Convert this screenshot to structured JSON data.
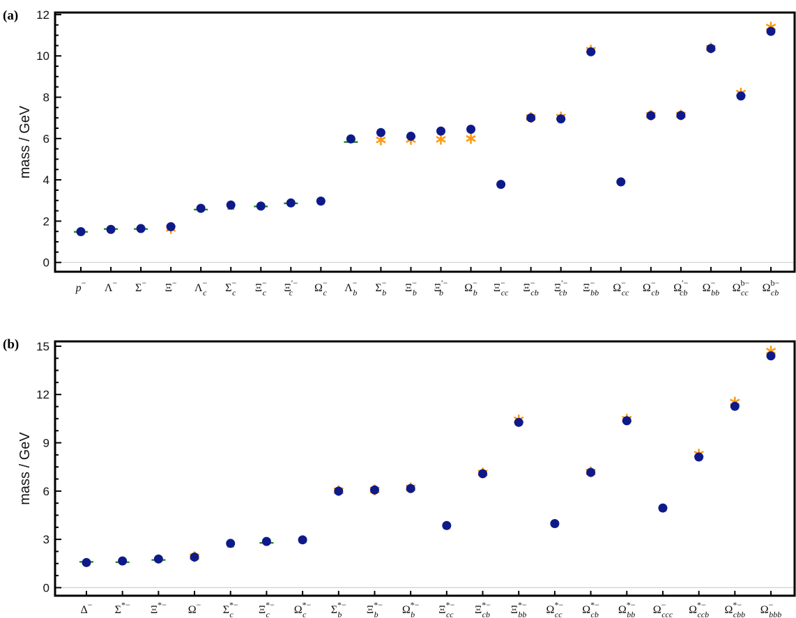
{
  "colors": {
    "circle": "#0f1a8a",
    "triangle": "#a88a3c",
    "star": "#ff9a10",
    "line": "#1e8a1e",
    "zero_line": "#c8c8c8",
    "frame": "#000000"
  },
  "chart_data": [
    {
      "type": "scatter",
      "panel_label": "(a)",
      "ylabel": "mass / GeV",
      "ylim": [
        -0.45,
        12.1
      ],
      "yticks": [
        0,
        2,
        4,
        6,
        8,
        10,
        12
      ],
      "grid": false,
      "categories": [
        {
          "base": "p",
          "sub": "",
          "sup": "−",
          "italic": true
        },
        {
          "base": "Λ",
          "sub": "",
          "sup": "−"
        },
        {
          "base": "Σ",
          "sub": "",
          "sup": "−"
        },
        {
          "base": "Ξ",
          "sub": "",
          "sup": "−"
        },
        {
          "base": "Λ",
          "sub": "c",
          "sup": "−"
        },
        {
          "base": "Σ",
          "sub": "c",
          "sup": "−"
        },
        {
          "base": "Ξ",
          "sub": "c",
          "sup": "−"
        },
        {
          "base": "Ξ",
          "sub": "c",
          "sup": "′−"
        },
        {
          "base": "Ω",
          "sub": "c",
          "sup": "−"
        },
        {
          "base": "Λ",
          "sub": "b",
          "sup": "−"
        },
        {
          "base": "Σ",
          "sub": "b",
          "sup": "−"
        },
        {
          "base": "Ξ",
          "sub": "b",
          "sup": "−"
        },
        {
          "base": "Ξ",
          "sub": "b",
          "sup": "′−"
        },
        {
          "base": "Ω",
          "sub": "b",
          "sup": "−"
        },
        {
          "base": "Ξ",
          "sub": "cc",
          "sup": "−"
        },
        {
          "base": "Ξ",
          "sub": "cb",
          "sup": "−"
        },
        {
          "base": "Ξ",
          "sub": "cb",
          "sup": "′−"
        },
        {
          "base": "Ξ",
          "sub": "bb",
          "sup": "−"
        },
        {
          "base": "Ω",
          "sub": "cc",
          "sup": "−"
        },
        {
          "base": "Ω",
          "sub": "cb",
          "sup": "−"
        },
        {
          "base": "Ω",
          "sub": "cb",
          "sup": "′−"
        },
        {
          "base": "Ω",
          "sub": "bb",
          "sup": "−"
        },
        {
          "base": "Ω",
          "sub": "cc",
          "sup": "b−"
        },
        {
          "base": "Ω",
          "sub": "cb",
          "sup": "b−"
        }
      ],
      "series": [
        {
          "marker": "line",
          "values": [
            1.48,
            1.62,
            1.62,
            null,
            2.56,
            null,
            2.71,
            2.86,
            null,
            5.83,
            null,
            null,
            null,
            null,
            null,
            null,
            null,
            null,
            null,
            null,
            null,
            null,
            null,
            null
          ]
        },
        {
          "marker": "triangle",
          "values": [
            null,
            null,
            null,
            null,
            null,
            2.72,
            null,
            null,
            2.99,
            null,
            null,
            null,
            null,
            null,
            3.8,
            null,
            null,
            null,
            3.93,
            null,
            null,
            null,
            null,
            null
          ]
        },
        {
          "marker": "star",
          "values": [
            null,
            null,
            null,
            1.64,
            null,
            null,
            null,
            null,
            null,
            null,
            5.93,
            5.95,
            5.96,
            6.0,
            null,
            7.02,
            7.04,
            10.28,
            null,
            7.13,
            7.14,
            10.38,
            8.2,
            11.4
          ]
        },
        {
          "marker": "circle",
          "values": [
            1.49,
            1.6,
            1.64,
            1.73,
            2.62,
            2.78,
            2.73,
            2.88,
            2.97,
            5.98,
            6.29,
            6.11,
            6.36,
            6.45,
            3.78,
            7.0,
            6.95,
            10.2,
            3.9,
            7.11,
            7.12,
            10.36,
            8.06,
            11.19
          ]
        }
      ]
    },
    {
      "type": "scatter",
      "panel_label": "(b)",
      "ylabel": "mass / GeV",
      "ylim": [
        -0.5,
        15.3
      ],
      "yticks": [
        0,
        3,
        6,
        9,
        12,
        15
      ],
      "grid": false,
      "categories": [
        {
          "base": "Δ",
          "sub": "",
          "sup": "−"
        },
        {
          "base": "Σ",
          "sub": "",
          "sup": "*−"
        },
        {
          "base": "Ξ",
          "sub": "",
          "sup": "*−"
        },
        {
          "base": "Ω",
          "sub": "",
          "sup": "−"
        },
        {
          "base": "Σ",
          "sub": "c",
          "sup": "*−"
        },
        {
          "base": "Ξ",
          "sub": "c",
          "sup": "*−"
        },
        {
          "base": "Ω",
          "sub": "c",
          "sup": "*−"
        },
        {
          "base": "Σ",
          "sub": "b",
          "sup": "*−"
        },
        {
          "base": "Ξ",
          "sub": "b",
          "sup": "*−"
        },
        {
          "base": "Ω",
          "sub": "b",
          "sup": "*−"
        },
        {
          "base": "Ξ",
          "sub": "cc",
          "sup": "*−"
        },
        {
          "base": "Ξ",
          "sub": "cb",
          "sup": "*−"
        },
        {
          "base": "Ξ",
          "sub": "bb",
          "sup": "*−"
        },
        {
          "base": "Ω",
          "sub": "cc",
          "sup": "*−"
        },
        {
          "base": "Ω",
          "sub": "cb",
          "sup": "*−"
        },
        {
          "base": "Ω",
          "sub": "bb",
          "sup": "*−"
        },
        {
          "base": "Ω",
          "sub": "ccc",
          "sup": "−"
        },
        {
          "base": "Ω",
          "sub": "ccb",
          "sup": "*−"
        },
        {
          "base": "Ω",
          "sub": "cbb",
          "sup": "*−"
        },
        {
          "base": "Ω",
          "sub": "bbb",
          "sup": "−"
        }
      ],
      "series": [
        {
          "marker": "line",
          "values": [
            1.6,
            1.58,
            1.72,
            null,
            null,
            2.78,
            null,
            null,
            null,
            null,
            null,
            null,
            null,
            null,
            null,
            null,
            null,
            null,
            null,
            null
          ]
        },
        {
          "marker": "triangle",
          "values": [
            null,
            null,
            null,
            null,
            2.72,
            null,
            2.98,
            null,
            null,
            null,
            3.85,
            null,
            null,
            3.98,
            null,
            null,
            4.95,
            null,
            null,
            null
          ]
        },
        {
          "marker": "star",
          "values": [
            null,
            null,
            null,
            1.92,
            null,
            null,
            null,
            6.02,
            6.07,
            6.2,
            null,
            7.13,
            10.43,
            null,
            7.19,
            10.47,
            null,
            8.3,
            11.53,
            14.7
          ]
        },
        {
          "marker": "circle",
          "values": [
            1.56,
            1.66,
            1.78,
            1.9,
            2.75,
            2.87,
            2.97,
            6.0,
            6.07,
            6.16,
            3.86,
            7.08,
            10.27,
            3.98,
            7.16,
            10.37,
            4.95,
            8.12,
            11.27,
            14.4
          ]
        }
      ]
    }
  ]
}
